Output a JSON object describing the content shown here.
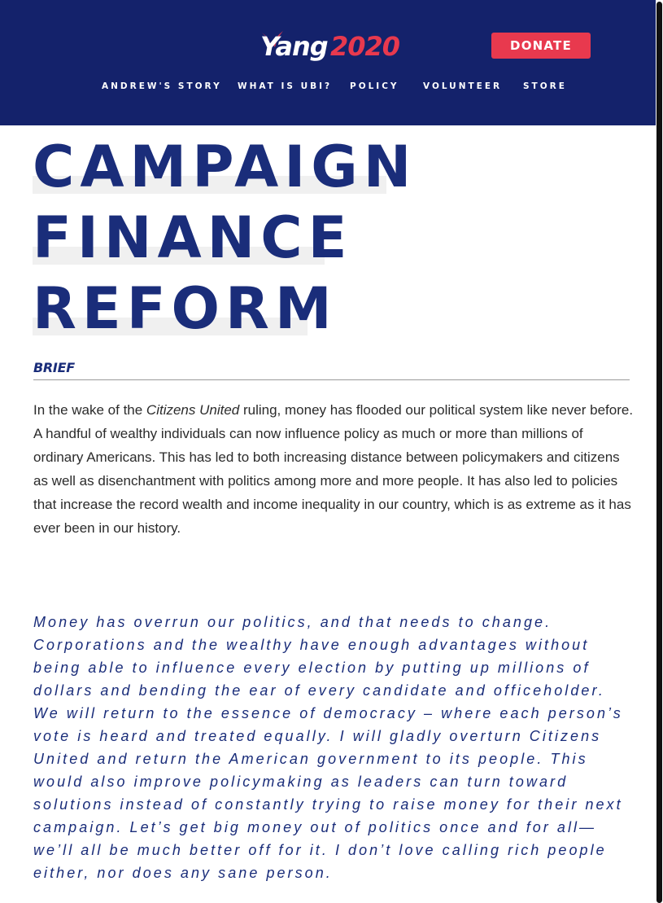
{
  "header": {
    "logo": {
      "word": "Yang",
      "year": "2020"
    },
    "donate_label": "DONATE",
    "nav": [
      {
        "label": "ANDREW'S STORY"
      },
      {
        "label": "WHAT IS UBI?"
      },
      {
        "label": "POLICY"
      },
      {
        "label": "VOLUNTEER"
      },
      {
        "label": "STORE"
      }
    ]
  },
  "article": {
    "title_lines": [
      "CAMPAIGN",
      "FINANCE",
      "REFORM"
    ],
    "section_label": "BRIEF",
    "body": {
      "prefix": "In the wake of the ",
      "emphasis": "Citizens United",
      "suffix": " ruling, money has flooded our political system like never before. A handful of wealthy individuals can now influence policy as much or more than millions of ordinary Americans. This has led to both increasing distance between policymakers and citizens as well as disenchantment with politics among more and more people. It has also led to policies that increase the record wealth and income inequality in our country, which is as extreme as it has ever been in our history."
    },
    "quote": "Money has overrun our politics, and that needs to change. Corporations and the wealthy have enough advantages without being able to influence every election by putting up millions of dollars and bending the ear of every candidate and officeholder. We will return to the essence of democracy – where each person’s vote is heard and treated equally. I will gladly overturn Citizens United and return the American government to its people. This would also improve policymaking as leaders can turn toward solutions instead of constantly trying to raise money for their next campaign. Let’s get big money out of politics once and for all—we’ll all be much better off for it. I don’t love calling rich people either, nor does any sane person."
  },
  "colors": {
    "header_bg": "#14226b",
    "accent_red": "#e8394e",
    "title_blue": "#1a2d7a"
  }
}
